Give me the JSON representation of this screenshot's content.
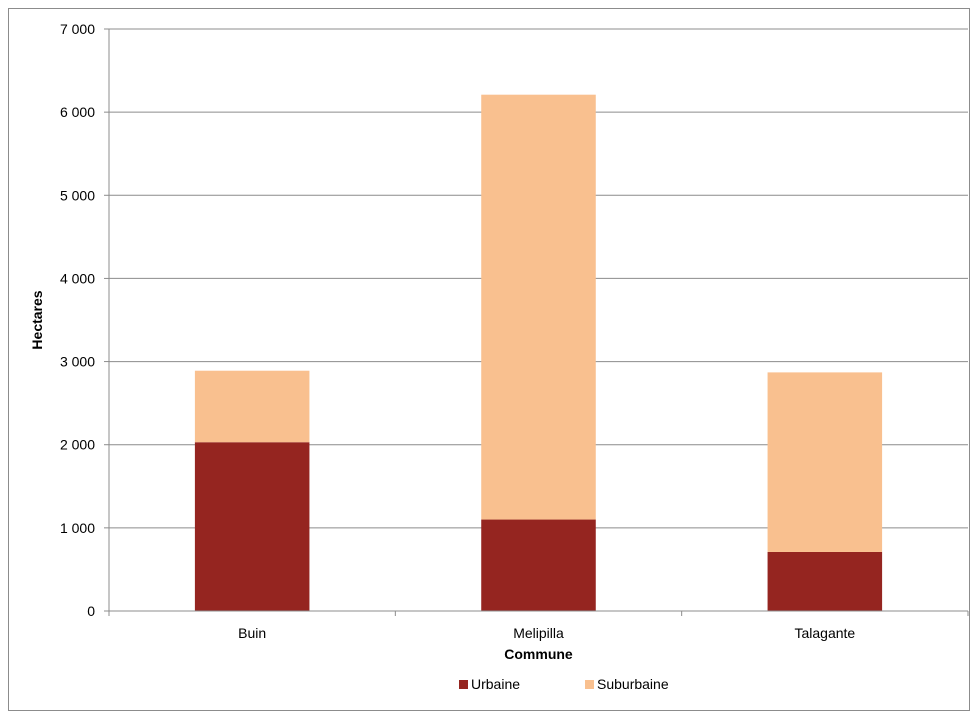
{
  "chart_data": {
    "type": "bar",
    "stacked": true,
    "categories": [
      "Buin",
      "Melipilla",
      "Talagante"
    ],
    "series": [
      {
        "name": "Urbaine",
        "values": [
          2030,
          1100,
          710
        ],
        "color": "#952520"
      },
      {
        "name": "Suburbaine",
        "values": [
          860,
          5110,
          2160
        ],
        "color": "#f9c08f"
      }
    ],
    "xlabel": "Commune",
    "ylabel": "Hectares",
    "ylim": [
      0,
      7000
    ],
    "yticks": [
      0,
      1000,
      2000,
      3000,
      4000,
      5000,
      6000,
      7000
    ],
    "ytick_labels": [
      "0",
      "1 000",
      "2 000",
      "3 000",
      "4 000",
      "5 000",
      "6 000",
      "7 000"
    ],
    "grid": true,
    "legend_position": "bottom"
  }
}
